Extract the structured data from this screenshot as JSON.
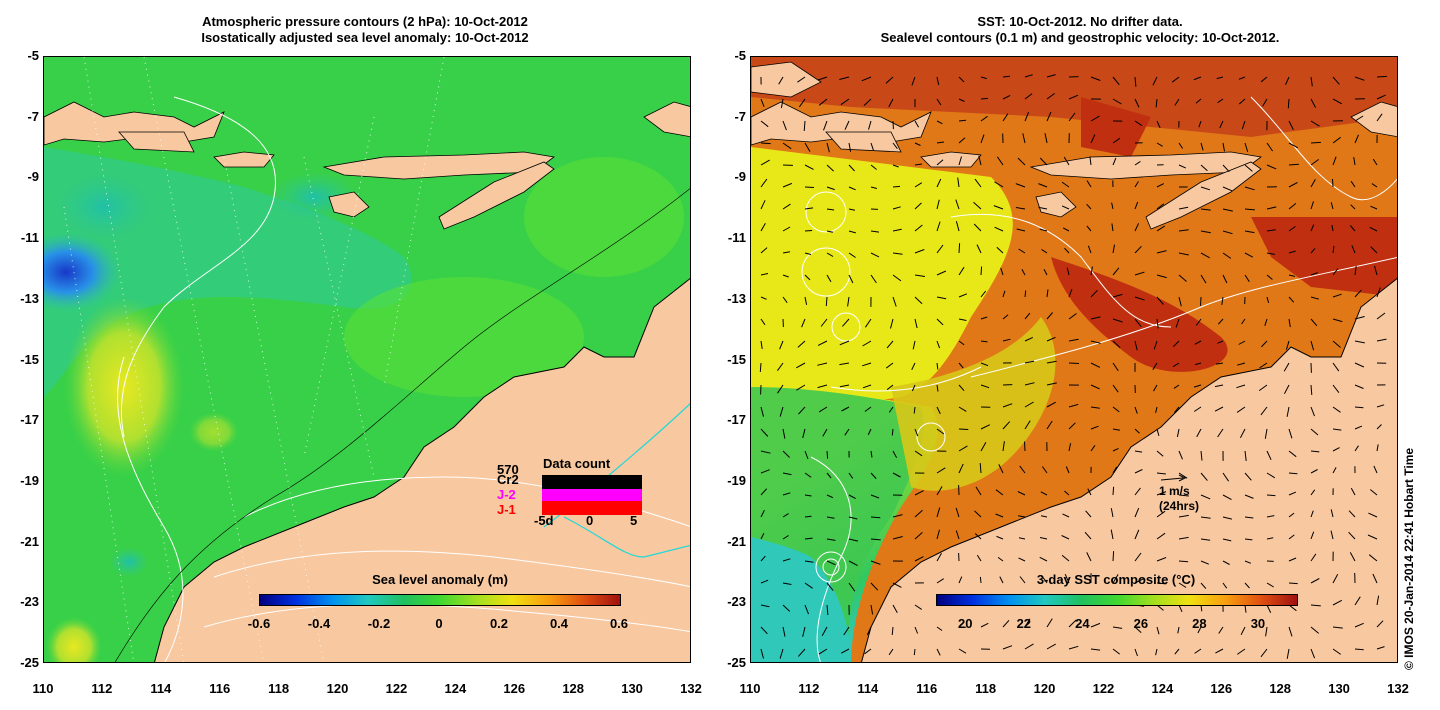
{
  "left_panel": {
    "title_line1": "Atmospheric pressure contours (2 hPa): 10-Oct-2012",
    "title_line2": "Isostatically adjusted sea level anomaly: 10-Oct-2012",
    "colorbar": {
      "label": "Sea level anomaly (m)",
      "ticks": [
        "-0.6",
        "-0.4",
        "-0.2",
        "0",
        "0.2",
        "0.4",
        "0.6"
      ],
      "range": [
        -0.6,
        0.6
      ]
    },
    "data_count": {
      "title": "Data count",
      "total": "570",
      "missions": [
        {
          "name": "Cr2",
          "color": "#000000"
        },
        {
          "name": "J-2",
          "color": "#ff00ff"
        },
        {
          "name": "J-1",
          "color": "#ff0000"
        }
      ],
      "axis_labels": [
        "-5d",
        "0",
        "5"
      ]
    }
  },
  "right_panel": {
    "title_line1": "SST: 10-Oct-2012. No drifter data.",
    "title_line2": "Sealevel contours (0.1 m) and geostrophic velocity: 10-Oct-2012.",
    "scale_arrow": {
      "line1": "1 m/s",
      "line2": "(24hrs)"
    },
    "colorbar": {
      "label": "3-day SST composite (°C)",
      "ticks": [
        "20",
        "22",
        "24",
        "26",
        "28",
        "30"
      ],
      "range": [
        19,
        31.3
      ]
    }
  },
  "axes": {
    "y_ticks": [
      "-5",
      "-7",
      "-9",
      "-11",
      "-13",
      "-15",
      "-17",
      "-19",
      "-21",
      "-23",
      "-25"
    ],
    "x_ticks": [
      "110",
      "112",
      "114",
      "116",
      "118",
      "120",
      "122",
      "124",
      "126",
      "128",
      "130",
      "132"
    ],
    "lat_range": [
      -25,
      -5
    ],
    "lon_range": [
      110,
      132
    ]
  },
  "copyright": "© IMOS 20-Jan-2014 22:41 Hobart Time",
  "colors": {
    "land": "#f8c8a0",
    "sla_background": "#38d048",
    "sst_background": "#e07818",
    "contour": "#ffffff",
    "coastline": "#000000"
  }
}
